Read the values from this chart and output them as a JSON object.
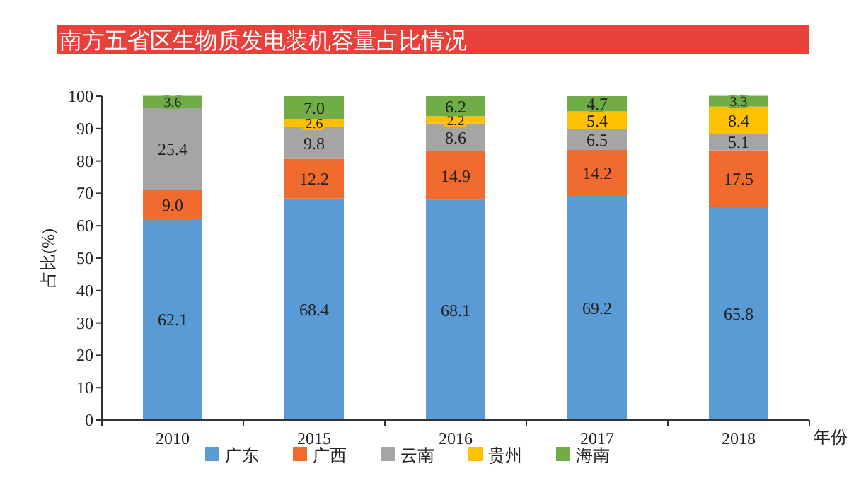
{
  "chart_data": {
    "type": "bar",
    "title": "南方五省区生物质发电装机容量占比情况",
    "ylabel": "占比(%)",
    "xlabel": "年份",
    "categories": [
      "2010",
      "2015",
      "2016",
      "2017",
      "2018"
    ],
    "stacked": true,
    "legend": "bottom",
    "grid": false,
    "ylim": [
      0,
      100
    ],
    "yticks": [
      0,
      10,
      20,
      30,
      40,
      50,
      60,
      70,
      80,
      90,
      100
    ],
    "series": [
      {
        "name": "广东",
        "color": "#5b9bd5",
        "values": [
          62.1,
          68.4,
          68.1,
          69.2,
          65.8
        ],
        "value_labels": [
          "62.1",
          "68.4",
          "68.1",
          "69.2",
          "65.8"
        ]
      },
      {
        "name": "广西",
        "color": "#f26b2e",
        "values": [
          9.0,
          12.2,
          14.9,
          14.2,
          17.5
        ],
        "value_labels": [
          "9.0",
          "12.2",
          "14.9",
          "14.2",
          "17.5"
        ]
      },
      {
        "name": "云南",
        "color": "#a5a5a5",
        "values": [
          25.4,
          9.8,
          8.6,
          6.5,
          5.1
        ],
        "value_labels": [
          "25.4",
          "9.8",
          "8.6",
          "6.5",
          "5.1"
        ]
      },
      {
        "name": "贵州",
        "color": "#ffc000",
        "values": [
          null,
          2.6,
          2.2,
          5.4,
          8.4
        ],
        "value_labels": [
          null,
          "2.6",
          "2.2",
          "5.4",
          "8.4"
        ]
      },
      {
        "name": "海南",
        "color": "#70ad47",
        "values": [
          3.6,
          7.0,
          6.2,
          4.7,
          3.3
        ],
        "value_labels": [
          "3.6",
          "7.0",
          "6.2",
          "4.7",
          "3.3"
        ]
      }
    ]
  }
}
